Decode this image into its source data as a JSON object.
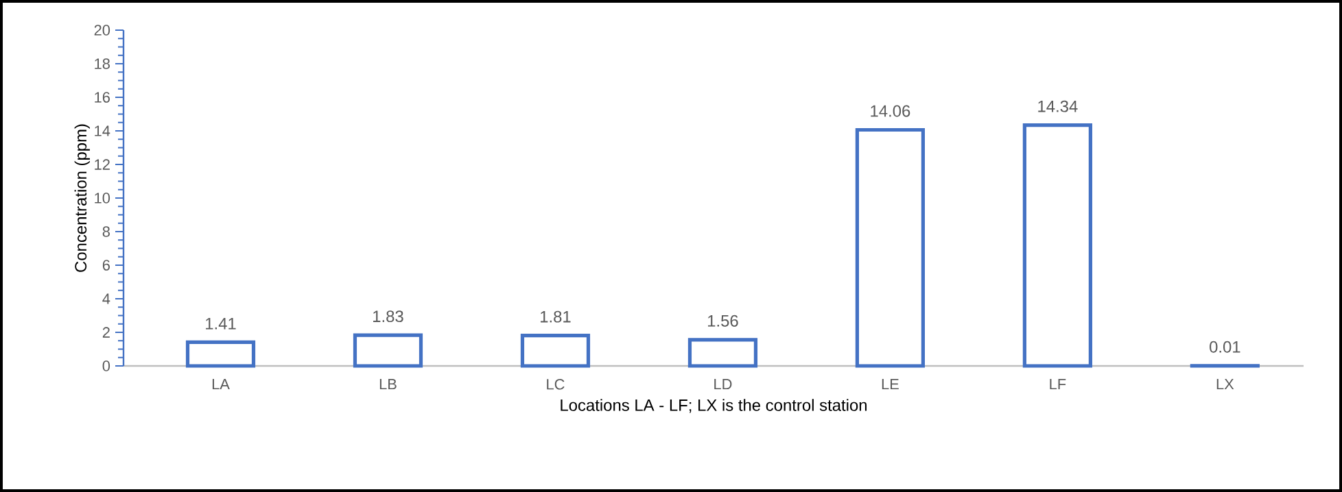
{
  "chart_data": {
    "type": "bar",
    "xlabel": "Locations LA - LF; LX is the control station",
    "ylabel": "Concentration (ppm)",
    "categories": [
      "LA",
      "LB",
      "LC",
      "LD",
      "LE",
      "LF",
      "LX"
    ],
    "values": [
      1.41,
      1.83,
      1.81,
      1.56,
      14.06,
      14.34,
      0.01
    ],
    "color": "#4472c4",
    "ylim": [
      0,
      20
    ],
    "yticks": [
      0,
      2,
      4,
      6,
      8,
      10,
      12,
      14,
      16,
      18,
      20
    ],
    "data_labels": true
  }
}
